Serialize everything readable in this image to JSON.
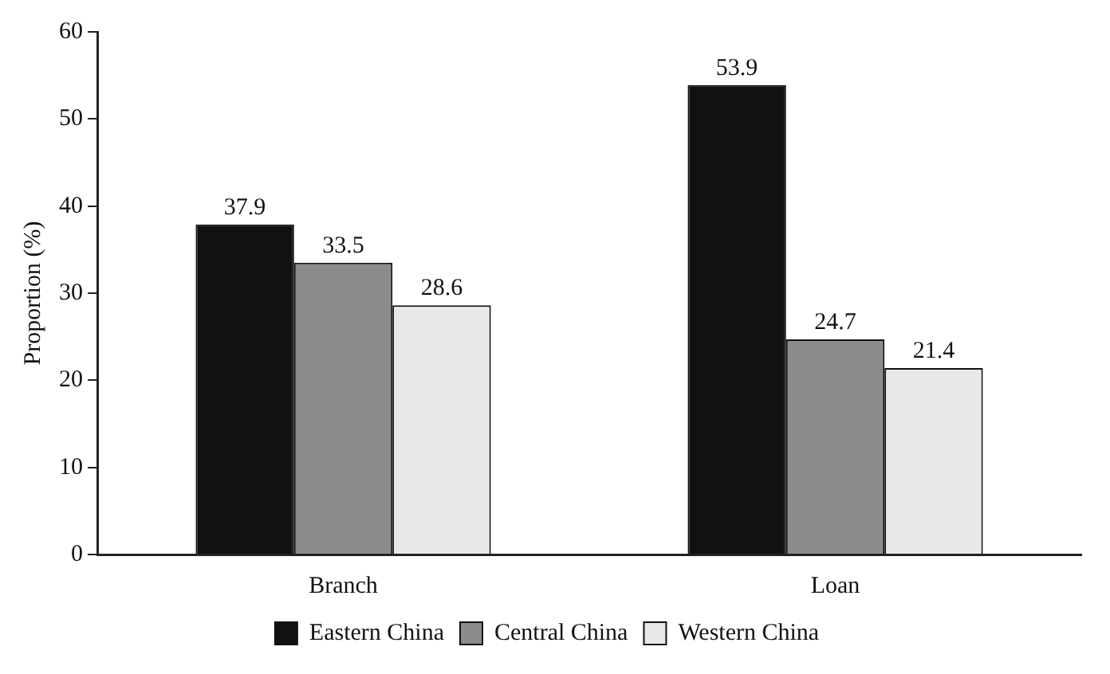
{
  "chart_data": {
    "type": "bar",
    "ylabel": "Proportion (%)",
    "categories": [
      "Branch",
      "Loan"
    ],
    "series": [
      {
        "name": "Eastern China",
        "color": "#111111",
        "values": [
          37.9,
          53.9
        ]
      },
      {
        "name": "Central China",
        "color": "#8c8c8c",
        "values": [
          33.5,
          24.7
        ]
      },
      {
        "name": "Western China",
        "color": "#e8e8e8",
        "values": [
          28.6,
          21.4
        ]
      }
    ],
    "ylim": [
      0,
      60
    ],
    "yticks": [
      0,
      10,
      20,
      30,
      40,
      50,
      60
    ],
    "grid": false,
    "legend": "bottom",
    "data_labels": true
  }
}
